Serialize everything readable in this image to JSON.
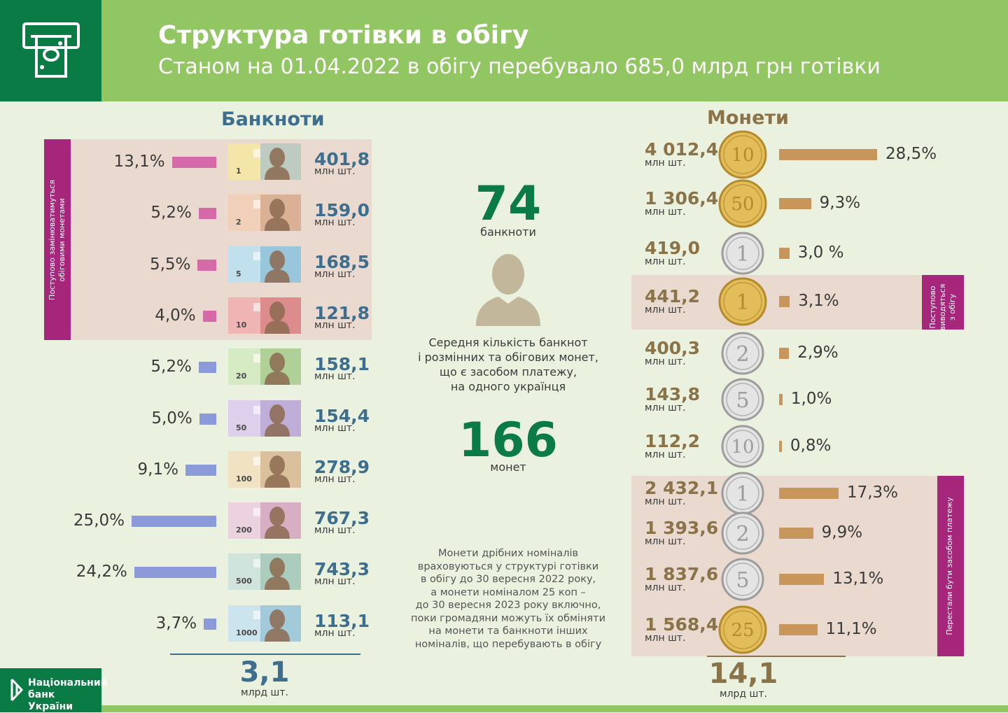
{
  "header": {
    "title": "Структура готівки в обігу",
    "subtitle": "Станом на 01.04.2022 в обігу перебувало 685,0 млрд грн готівки",
    "logo_icon": "cash-banknote-icon"
  },
  "footer": {
    "bank_name_line1": "Національний",
    "bank_name_line2": "банк України"
  },
  "center": {
    "banknotes_count": "74",
    "banknotes_label": "банкноти",
    "person_icon": "person-silhouette-icon",
    "description": [
      "Середня кількість банкнот",
      "і розмінних та обігових монет,",
      "що є засобом платежу,",
      "на одного українця"
    ],
    "coins_count": "166",
    "coins_label": "монет",
    "note": [
      "Монети дрібних номіналів",
      "враховуються у структурі готівки",
      "в обігу до 30 вересня 2022 року,",
      "а монети номіналом 25 коп –",
      "до 30 вересня 2023 року включно,",
      "поки громадяни можуть їх обміняти",
      "на монети та банкноти інших",
      "номіналів, що перебувають в обігу"
    ]
  },
  "colors": {
    "header_green": "#92c663",
    "dark_green": "#0a7b45",
    "banknote_value_blue": "#3e6e8e",
    "coin_value_brown": "#8a7348",
    "bar_pink": "#d46aa8",
    "bar_blue": "#8b9ad8",
    "bar_gold": "#c8955a",
    "group_bg": "#ead9cf",
    "magenta_band": "#a5267a"
  },
  "chart_data": [
    {
      "type": "bar",
      "title": "Банкноти",
      "categories": [
        "1",
        "2",
        "5",
        "10",
        "20",
        "50",
        "100",
        "200",
        "500",
        "1000"
      ],
      "series": [
        {
          "values": [
            13.1,
            5.2,
            5.5,
            4.0,
            5.2,
            5.0,
            9.1,
            25.0,
            24.2,
            3.7
          ]
        }
      ],
      "value_labels": [
        "13,1%",
        "5,2%",
        "5,5%",
        "4,0%",
        "5,2%",
        "5,0%",
        "9,1%",
        "25,0%",
        "24,2%",
        "3,7%"
      ],
      "counts": [
        "401,8",
        "159,0",
        "168,5",
        "121,8",
        "158,1",
        "154,4",
        "278,9",
        "767,3",
        "743,3",
        "113,1"
      ],
      "count_unit": "млн шт.",
      "group_label": [
        "Поступово замінюватимуться",
        "обіговими монетами"
      ],
      "group_members": [
        "1",
        "2",
        "5",
        "10"
      ],
      "total": "3,1",
      "total_unit": "млрд шт."
    },
    {
      "type": "bar",
      "title": "Монети",
      "categories": [
        "10",
        "50",
        "1",
        "1 гривня",
        "2",
        "5",
        "10",
        "1",
        "2",
        "5",
        "25"
      ],
      "series": [
        {
          "values": [
            28.5,
            9.3,
            3.0,
            3.1,
            2.9,
            1.0,
            0.8,
            17.3,
            9.9,
            13.1,
            11.1
          ]
        }
      ],
      "value_labels": [
        "28,5%",
        "9,3%",
        "3,0 %",
        "3,1%",
        "2,9%",
        "1,0%",
        "0,8%",
        "17,3%",
        "9,9%",
        "13,1%",
        "11,1%"
      ],
      "counts": [
        "4 012,4",
        "1 306,4",
        "419,0",
        "441,2",
        "400,3",
        "143,8",
        "112,2",
        "2 432,1",
        "1 393,6",
        "1 837,6",
        "1 568,4"
      ],
      "count_unit": "млн шт.",
      "coin_types": [
        "gold",
        "gold",
        "silver",
        "gold",
        "silver",
        "silver",
        "silver",
        "silver",
        "silver",
        "silver",
        "gold"
      ],
      "coin_text": [
        "10",
        "50",
        "1",
        "1",
        "2",
        "5",
        "10",
        "1",
        "2",
        "5",
        "25"
      ],
      "group1_label": [
        "Поступово",
        "виводяться",
        "з обігу"
      ],
      "group1_members": [
        3
      ],
      "group2_label": [
        "Перестали бути засобом платежу"
      ],
      "group2_members": [
        7,
        8,
        9,
        10
      ],
      "total": "14,1",
      "total_unit": "млрд шт."
    }
  ]
}
